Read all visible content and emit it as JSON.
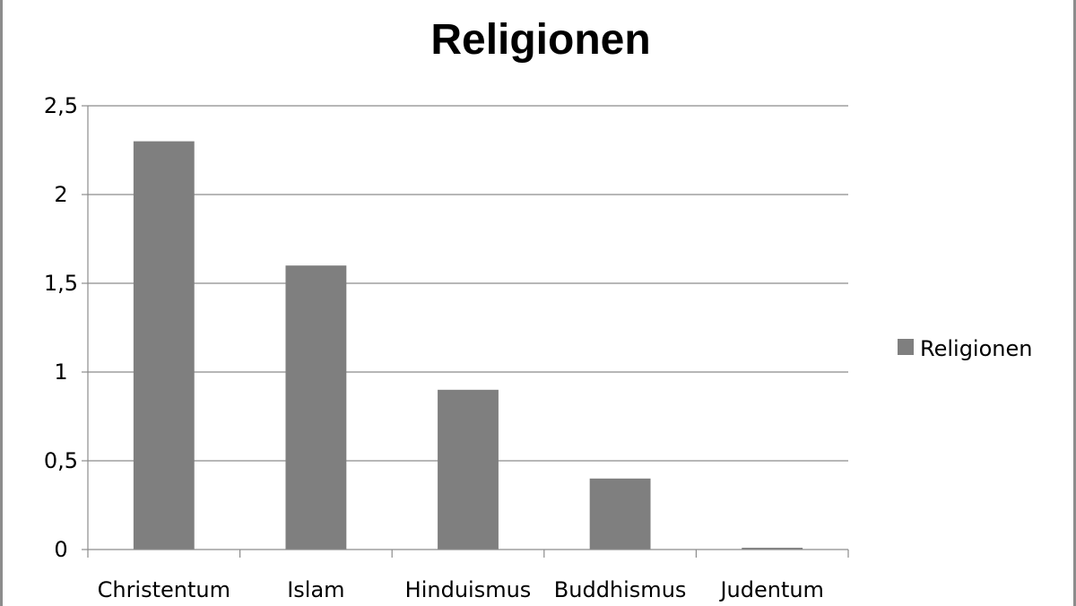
{
  "chart_data": {
    "type": "bar",
    "title": "Religionen",
    "categories": [
      "Christentum",
      "Islam",
      "Hinduismus",
      "Buddhismus",
      "Judentum"
    ],
    "series": [
      {
        "name": "Religionen",
        "values": [
          2.3,
          1.6,
          0.9,
          0.4,
          0.01
        ],
        "color": "#7f7f7f"
      }
    ],
    "ylim": [
      0,
      2.5
    ],
    "yticks": [
      "0",
      "0,5",
      "1",
      "1,5",
      "2",
      "2,5"
    ],
    "ytick_values": [
      0,
      0.5,
      1,
      1.5,
      2,
      2.5
    ],
    "grid": true,
    "legend": "right"
  }
}
